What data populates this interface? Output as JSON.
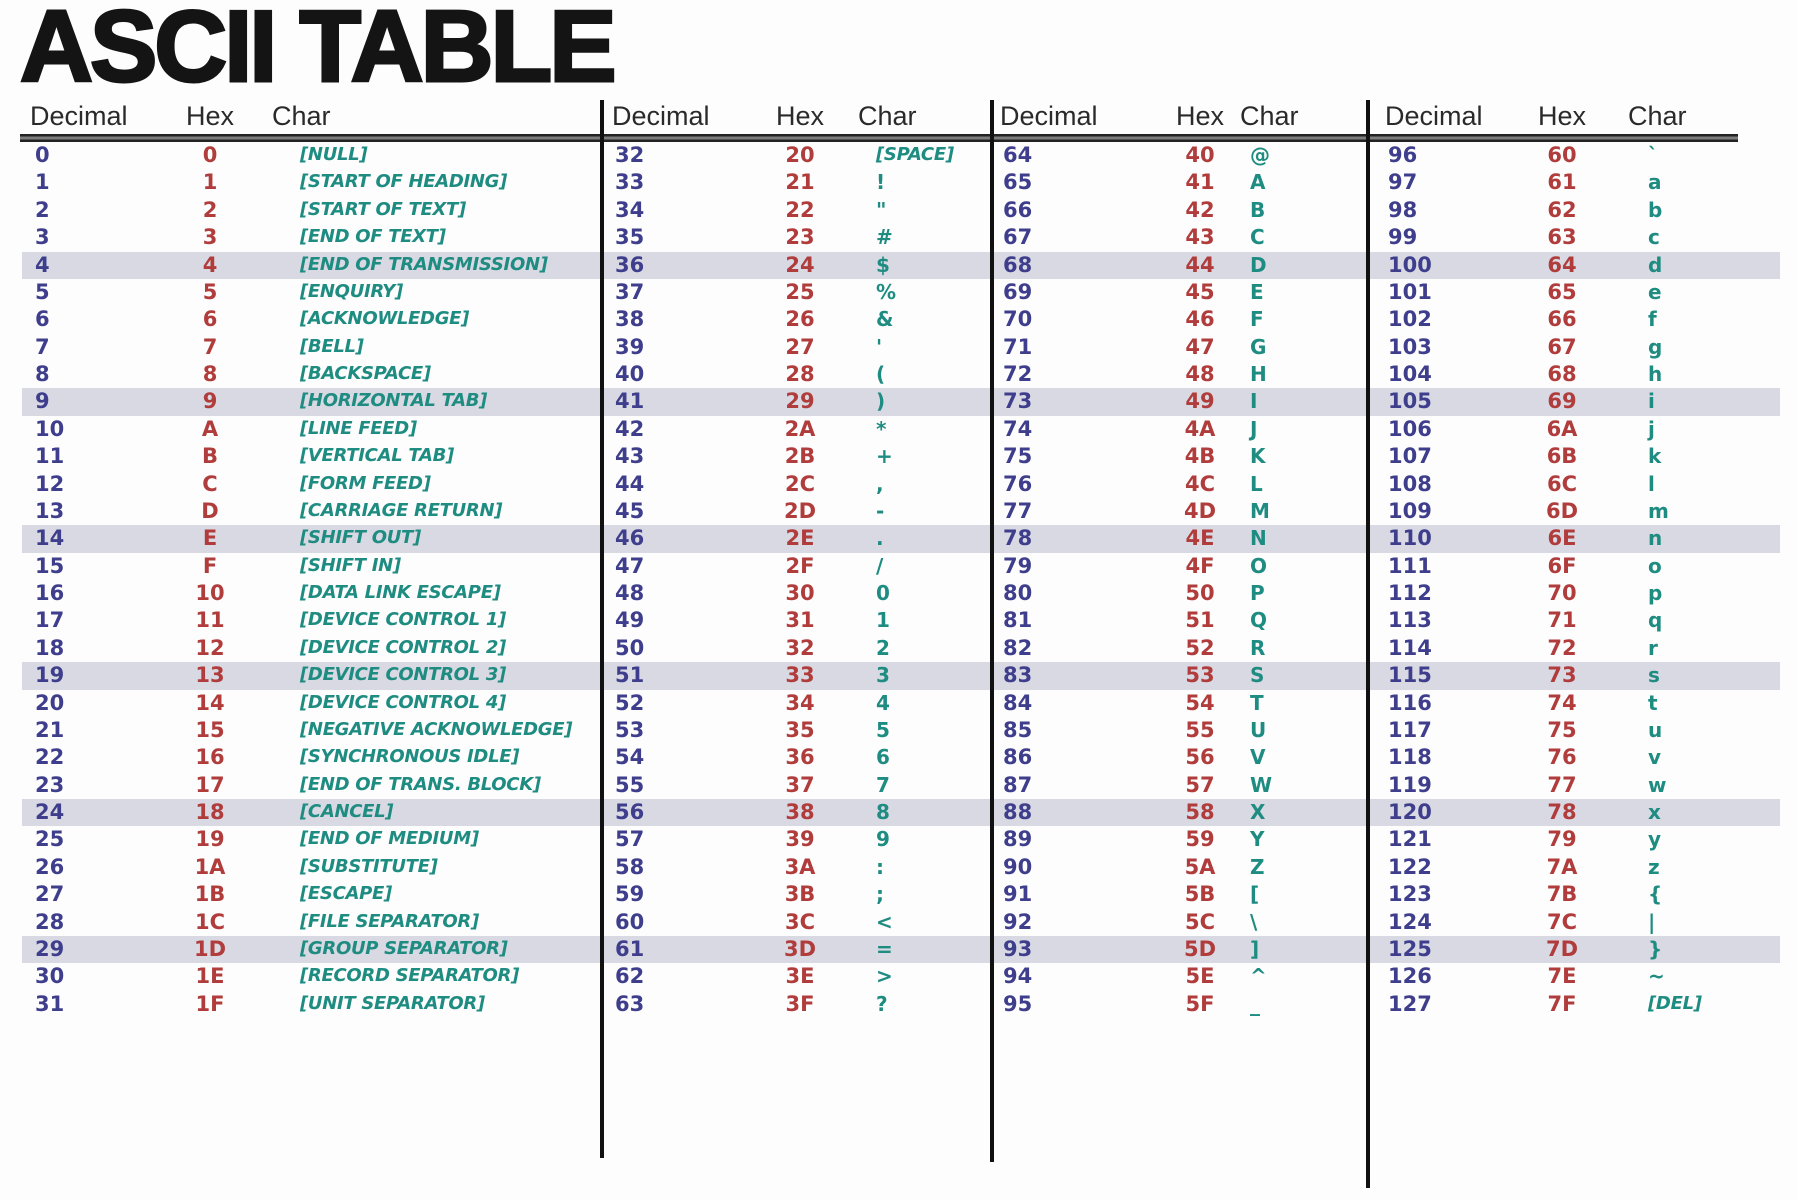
{
  "title": "ASCII TABLE",
  "header": {
    "decimal": "Decimal",
    "hex": "Hex",
    "char": "Char"
  },
  "highlight_rows": [
    4,
    9,
    14,
    19,
    24,
    29
  ],
  "colors": {
    "decimal_text": "#3e3e8c",
    "hex_text": "#b03c3c",
    "char_text": "#1f8c82",
    "row_highlight": "#d8d9e3",
    "title_text": "#141414",
    "separator": "#111111"
  },
  "columns": [
    {
      "rows": [
        {
          "dec": "0",
          "hex": "0",
          "char": "[NULL]"
        },
        {
          "dec": "1",
          "hex": "1",
          "char": "[START OF HEADING]"
        },
        {
          "dec": "2",
          "hex": "2",
          "char": "[START OF TEXT]"
        },
        {
          "dec": "3",
          "hex": "3",
          "char": "[END OF TEXT]"
        },
        {
          "dec": "4",
          "hex": "4",
          "char": "[END OF TRANSMISSION]"
        },
        {
          "dec": "5",
          "hex": "5",
          "char": "[ENQUIRY]"
        },
        {
          "dec": "6",
          "hex": "6",
          "char": "[ACKNOWLEDGE]"
        },
        {
          "dec": "7",
          "hex": "7",
          "char": "[BELL]"
        },
        {
          "dec": "8",
          "hex": "8",
          "char": "[BACKSPACE]"
        },
        {
          "dec": "9",
          "hex": "9",
          "char": "[HORIZONTAL TAB]"
        },
        {
          "dec": "10",
          "hex": "A",
          "char": "[LINE FEED]"
        },
        {
          "dec": "11",
          "hex": "B",
          "char": "[VERTICAL TAB]"
        },
        {
          "dec": "12",
          "hex": "C",
          "char": "[FORM FEED]"
        },
        {
          "dec": "13",
          "hex": "D",
          "char": "[CARRIAGE RETURN]"
        },
        {
          "dec": "14",
          "hex": "E",
          "char": "[SHIFT OUT]"
        },
        {
          "dec": "15",
          "hex": "F",
          "char": "[SHIFT IN]"
        },
        {
          "dec": "16",
          "hex": "10",
          "char": "[DATA LINK ESCAPE]"
        },
        {
          "dec": "17",
          "hex": "11",
          "char": "[DEVICE CONTROL 1]"
        },
        {
          "dec": "18",
          "hex": "12",
          "char": "[DEVICE CONTROL 2]"
        },
        {
          "dec": "19",
          "hex": "13",
          "char": "[DEVICE CONTROL 3]"
        },
        {
          "dec": "20",
          "hex": "14",
          "char": "[DEVICE CONTROL 4]"
        },
        {
          "dec": "21",
          "hex": "15",
          "char": "[NEGATIVE ACKNOWLEDGE]"
        },
        {
          "dec": "22",
          "hex": "16",
          "char": "[SYNCHRONOUS IDLE]"
        },
        {
          "dec": "23",
          "hex": "17",
          "char": "[END OF TRANS. BLOCK]"
        },
        {
          "dec": "24",
          "hex": "18",
          "char": "[CANCEL]"
        },
        {
          "dec": "25",
          "hex": "19",
          "char": "[END OF MEDIUM]"
        },
        {
          "dec": "26",
          "hex": "1A",
          "char": "[SUBSTITUTE]"
        },
        {
          "dec": "27",
          "hex": "1B",
          "char": "[ESCAPE]"
        },
        {
          "dec": "28",
          "hex": "1C",
          "char": "[FILE SEPARATOR]"
        },
        {
          "dec": "29",
          "hex": "1D",
          "char": "[GROUP SEPARATOR]"
        },
        {
          "dec": "30",
          "hex": "1E",
          "char": "[RECORD SEPARATOR]"
        },
        {
          "dec": "31",
          "hex": "1F",
          "char": "[UNIT SEPARATOR]"
        }
      ]
    },
    {
      "rows": [
        {
          "dec": "32",
          "hex": "20",
          "char": "[SPACE]"
        },
        {
          "dec": "33",
          "hex": "21",
          "char": "!"
        },
        {
          "dec": "34",
          "hex": "22",
          "char": "\""
        },
        {
          "dec": "35",
          "hex": "23",
          "char": "#"
        },
        {
          "dec": "36",
          "hex": "24",
          "char": "$"
        },
        {
          "dec": "37",
          "hex": "25",
          "char": "%"
        },
        {
          "dec": "38",
          "hex": "26",
          "char": "&"
        },
        {
          "dec": "39",
          "hex": "27",
          "char": "'"
        },
        {
          "dec": "40",
          "hex": "28",
          "char": "("
        },
        {
          "dec": "41",
          "hex": "29",
          "char": ")"
        },
        {
          "dec": "42",
          "hex": "2A",
          "char": "*"
        },
        {
          "dec": "43",
          "hex": "2B",
          "char": "+"
        },
        {
          "dec": "44",
          "hex": "2C",
          "char": ","
        },
        {
          "dec": "45",
          "hex": "2D",
          "char": "-"
        },
        {
          "dec": "46",
          "hex": "2E",
          "char": "."
        },
        {
          "dec": "47",
          "hex": "2F",
          "char": "/"
        },
        {
          "dec": "48",
          "hex": "30",
          "char": "0"
        },
        {
          "dec": "49",
          "hex": "31",
          "char": "1"
        },
        {
          "dec": "50",
          "hex": "32",
          "char": "2"
        },
        {
          "dec": "51",
          "hex": "33",
          "char": "3"
        },
        {
          "dec": "52",
          "hex": "34",
          "char": "4"
        },
        {
          "dec": "53",
          "hex": "35",
          "char": "5"
        },
        {
          "dec": "54",
          "hex": "36",
          "char": "6"
        },
        {
          "dec": "55",
          "hex": "37",
          "char": "7"
        },
        {
          "dec": "56",
          "hex": "38",
          "char": "8"
        },
        {
          "dec": "57",
          "hex": "39",
          "char": "9"
        },
        {
          "dec": "58",
          "hex": "3A",
          "char": ":"
        },
        {
          "dec": "59",
          "hex": "3B",
          "char": ";"
        },
        {
          "dec": "60",
          "hex": "3C",
          "char": "<"
        },
        {
          "dec": "61",
          "hex": "3D",
          "char": "="
        },
        {
          "dec": "62",
          "hex": "3E",
          "char": ">"
        },
        {
          "dec": "63",
          "hex": "3F",
          "char": "?"
        }
      ]
    },
    {
      "rows": [
        {
          "dec": "64",
          "hex": "40",
          "char": "@"
        },
        {
          "dec": "65",
          "hex": "41",
          "char": "A"
        },
        {
          "dec": "66",
          "hex": "42",
          "char": "B"
        },
        {
          "dec": "67",
          "hex": "43",
          "char": "C"
        },
        {
          "dec": "68",
          "hex": "44",
          "char": "D"
        },
        {
          "dec": "69",
          "hex": "45",
          "char": "E"
        },
        {
          "dec": "70",
          "hex": "46",
          "char": "F"
        },
        {
          "dec": "71",
          "hex": "47",
          "char": "G"
        },
        {
          "dec": "72",
          "hex": "48",
          "char": "H"
        },
        {
          "dec": "73",
          "hex": "49",
          "char": "I"
        },
        {
          "dec": "74",
          "hex": "4A",
          "char": "J"
        },
        {
          "dec": "75",
          "hex": "4B",
          "char": "K"
        },
        {
          "dec": "76",
          "hex": "4C",
          "char": "L"
        },
        {
          "dec": "77",
          "hex": "4D",
          "char": "M"
        },
        {
          "dec": "78",
          "hex": "4E",
          "char": "N"
        },
        {
          "dec": "79",
          "hex": "4F",
          "char": "O"
        },
        {
          "dec": "80",
          "hex": "50",
          "char": "P"
        },
        {
          "dec": "81",
          "hex": "51",
          "char": "Q"
        },
        {
          "dec": "82",
          "hex": "52",
          "char": "R"
        },
        {
          "dec": "83",
          "hex": "53",
          "char": "S"
        },
        {
          "dec": "84",
          "hex": "54",
          "char": "T"
        },
        {
          "dec": "85",
          "hex": "55",
          "char": "U"
        },
        {
          "dec": "86",
          "hex": "56",
          "char": "V"
        },
        {
          "dec": "87",
          "hex": "57",
          "char": "W"
        },
        {
          "dec": "88",
          "hex": "58",
          "char": "X"
        },
        {
          "dec": "89",
          "hex": "59",
          "char": "Y"
        },
        {
          "dec": "90",
          "hex": "5A",
          "char": "Z"
        },
        {
          "dec": "91",
          "hex": "5B",
          "char": "["
        },
        {
          "dec": "92",
          "hex": "5C",
          "char": "\\"
        },
        {
          "dec": "93",
          "hex": "5D",
          "char": "]"
        },
        {
          "dec": "94",
          "hex": "5E",
          "char": "^"
        },
        {
          "dec": "95",
          "hex": "5F",
          "char": "_"
        }
      ]
    },
    {
      "rows": [
        {
          "dec": "96",
          "hex": "60",
          "char": "`"
        },
        {
          "dec": "97",
          "hex": "61",
          "char": "a"
        },
        {
          "dec": "98",
          "hex": "62",
          "char": "b"
        },
        {
          "dec": "99",
          "hex": "63",
          "char": "c"
        },
        {
          "dec": "100",
          "hex": "64",
          "char": "d"
        },
        {
          "dec": "101",
          "hex": "65",
          "char": "e"
        },
        {
          "dec": "102",
          "hex": "66",
          "char": "f"
        },
        {
          "dec": "103",
          "hex": "67",
          "char": "g"
        },
        {
          "dec": "104",
          "hex": "68",
          "char": "h"
        },
        {
          "dec": "105",
          "hex": "69",
          "char": "i"
        },
        {
          "dec": "106",
          "hex": "6A",
          "char": "j"
        },
        {
          "dec": "107",
          "hex": "6B",
          "char": "k"
        },
        {
          "dec": "108",
          "hex": "6C",
          "char": "l"
        },
        {
          "dec": "109",
          "hex": "6D",
          "char": "m"
        },
        {
          "dec": "110",
          "hex": "6E",
          "char": "n"
        },
        {
          "dec": "111",
          "hex": "6F",
          "char": "o"
        },
        {
          "dec": "112",
          "hex": "70",
          "char": "p"
        },
        {
          "dec": "113",
          "hex": "71",
          "char": "q"
        },
        {
          "dec": "114",
          "hex": "72",
          "char": "r"
        },
        {
          "dec": "115",
          "hex": "73",
          "char": "s"
        },
        {
          "dec": "116",
          "hex": "74",
          "char": "t"
        },
        {
          "dec": "117",
          "hex": "75",
          "char": "u"
        },
        {
          "dec": "118",
          "hex": "76",
          "char": "v"
        },
        {
          "dec": "119",
          "hex": "77",
          "char": "w"
        },
        {
          "dec": "120",
          "hex": "78",
          "char": "x"
        },
        {
          "dec": "121",
          "hex": "79",
          "char": "y"
        },
        {
          "dec": "122",
          "hex": "7A",
          "char": "z"
        },
        {
          "dec": "123",
          "hex": "7B",
          "char": "{"
        },
        {
          "dec": "124",
          "hex": "7C",
          "char": "|"
        },
        {
          "dec": "125",
          "hex": "7D",
          "char": "}"
        },
        {
          "dec": "126",
          "hex": "7E",
          "char": "~"
        },
        {
          "dec": "127",
          "hex": "7F",
          "char": "[DEL]"
        }
      ]
    }
  ]
}
